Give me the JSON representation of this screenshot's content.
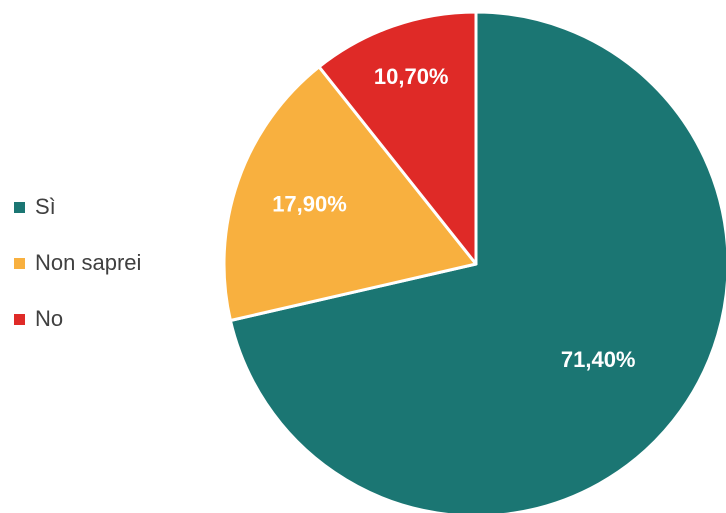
{
  "chart_data": {
    "type": "pie",
    "title": "",
    "legend_position": "left",
    "start_angle_deg": 0,
    "direction": "clockwise",
    "slices": [
      {
        "label": "Sì",
        "value": 71.4,
        "display": "71,40%",
        "color": "#1b7673"
      },
      {
        "label": "Non saprei",
        "value": 17.9,
        "display": "17,90%",
        "color": "#f8b03f"
      },
      {
        "label": "No",
        "value": 10.7,
        "display": "10,70%",
        "color": "#df2a27"
      }
    ]
  }
}
